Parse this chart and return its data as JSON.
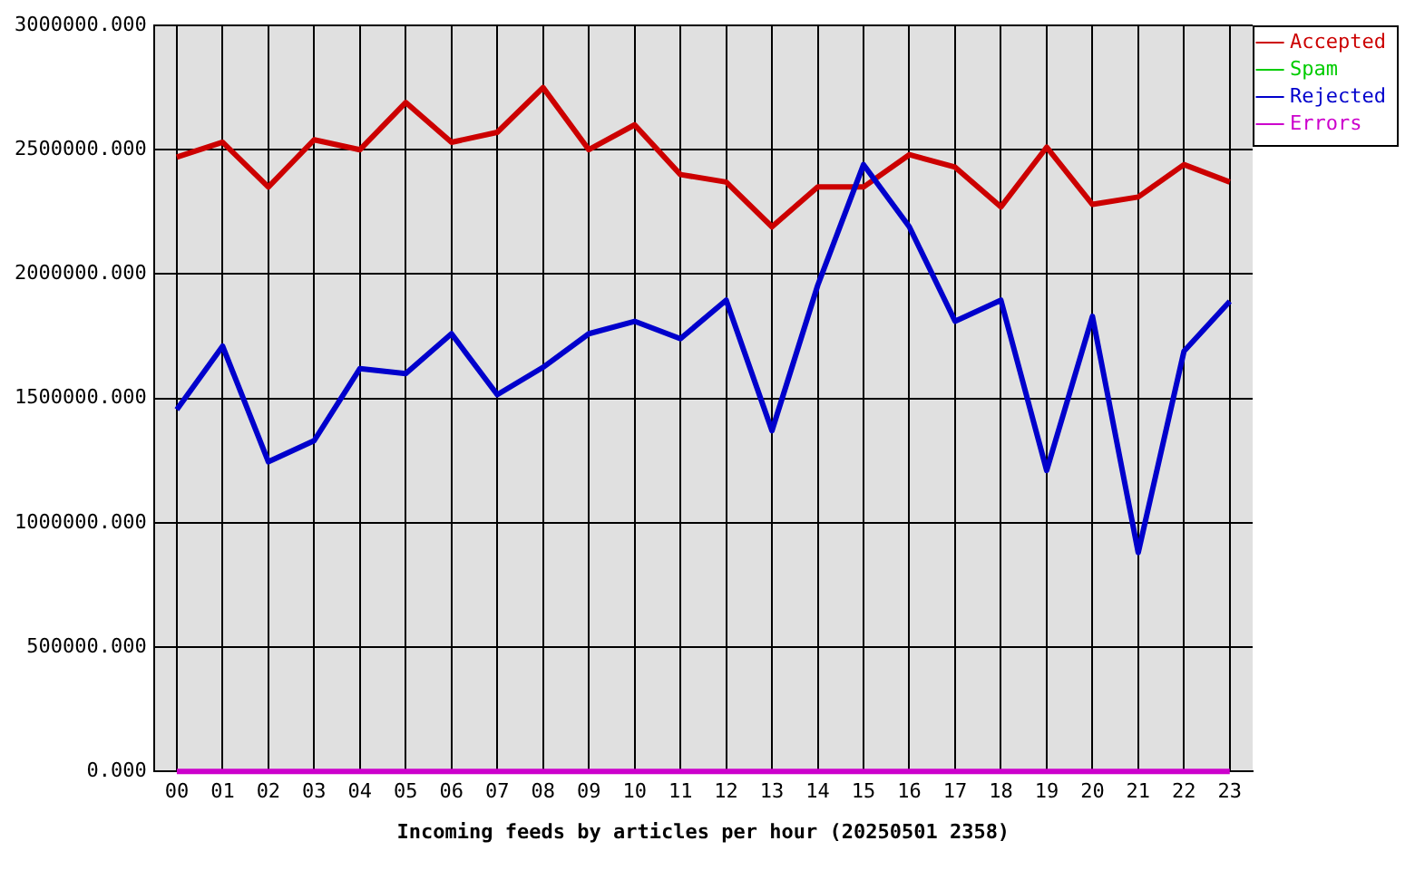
{
  "chart_data": {
    "type": "line",
    "xlabel": "Incoming feeds by articles per hour (20250501 2358)",
    "categories": [
      "00",
      "01",
      "02",
      "03",
      "04",
      "05",
      "06",
      "07",
      "08",
      "09",
      "10",
      "11",
      "12",
      "13",
      "14",
      "15",
      "16",
      "17",
      "18",
      "19",
      "20",
      "21",
      "22",
      "23"
    ],
    "series": [
      {
        "name": "Accepted",
        "color": "#cc0000",
        "values": [
          2470000,
          2530000,
          2350000,
          2540000,
          2500000,
          2690000,
          2530000,
          2570000,
          2750000,
          2500000,
          2600000,
          2400000,
          2370000,
          2190000,
          2350000,
          2350000,
          2480000,
          2430000,
          2270000,
          2510000,
          2280000,
          2310000,
          2440000,
          2370000
        ]
      },
      {
        "name": "Spam",
        "color": "#00cc00",
        "values": [
          null,
          null,
          null,
          null,
          null,
          null,
          null,
          null,
          null,
          null,
          null,
          null,
          null,
          null,
          null,
          null,
          null,
          null,
          null,
          null,
          null,
          null,
          null,
          null
        ]
      },
      {
        "name": "Rejected",
        "color": "#0000cc",
        "values": [
          1455000,
          1710000,
          1245000,
          1330000,
          1620000,
          1600000,
          1760000,
          1515000,
          1625000,
          1760000,
          1810000,
          1740000,
          1895000,
          1370000,
          1955000,
          2440000,
          2190000,
          1810000,
          1895000,
          1210000,
          1830000,
          880000,
          1690000,
          1890000
        ]
      },
      {
        "name": "Errors",
        "color": "#cc00cc",
        "values": [
          0,
          0,
          0,
          0,
          0,
          0,
          0,
          0,
          0,
          0,
          0,
          0,
          0,
          0,
          0,
          0,
          0,
          0,
          0,
          0,
          0,
          0,
          0,
          0
        ]
      }
    ],
    "ylim": [
      0,
      3000000
    ],
    "yticks": [
      {
        "value": 0,
        "label": "0.000"
      },
      {
        "value": 500000,
        "label": "500000.000"
      },
      {
        "value": 1000000,
        "label": "1000000.000"
      },
      {
        "value": 1500000,
        "label": "1500000.000"
      },
      {
        "value": 2000000,
        "label": "2000000.000"
      },
      {
        "value": 2500000,
        "label": "2500000.000"
      },
      {
        "value": 3000000,
        "label": "3000000.000"
      }
    ],
    "grid": true,
    "legend": "top right",
    "marker": "none",
    "line_style": "solid"
  }
}
